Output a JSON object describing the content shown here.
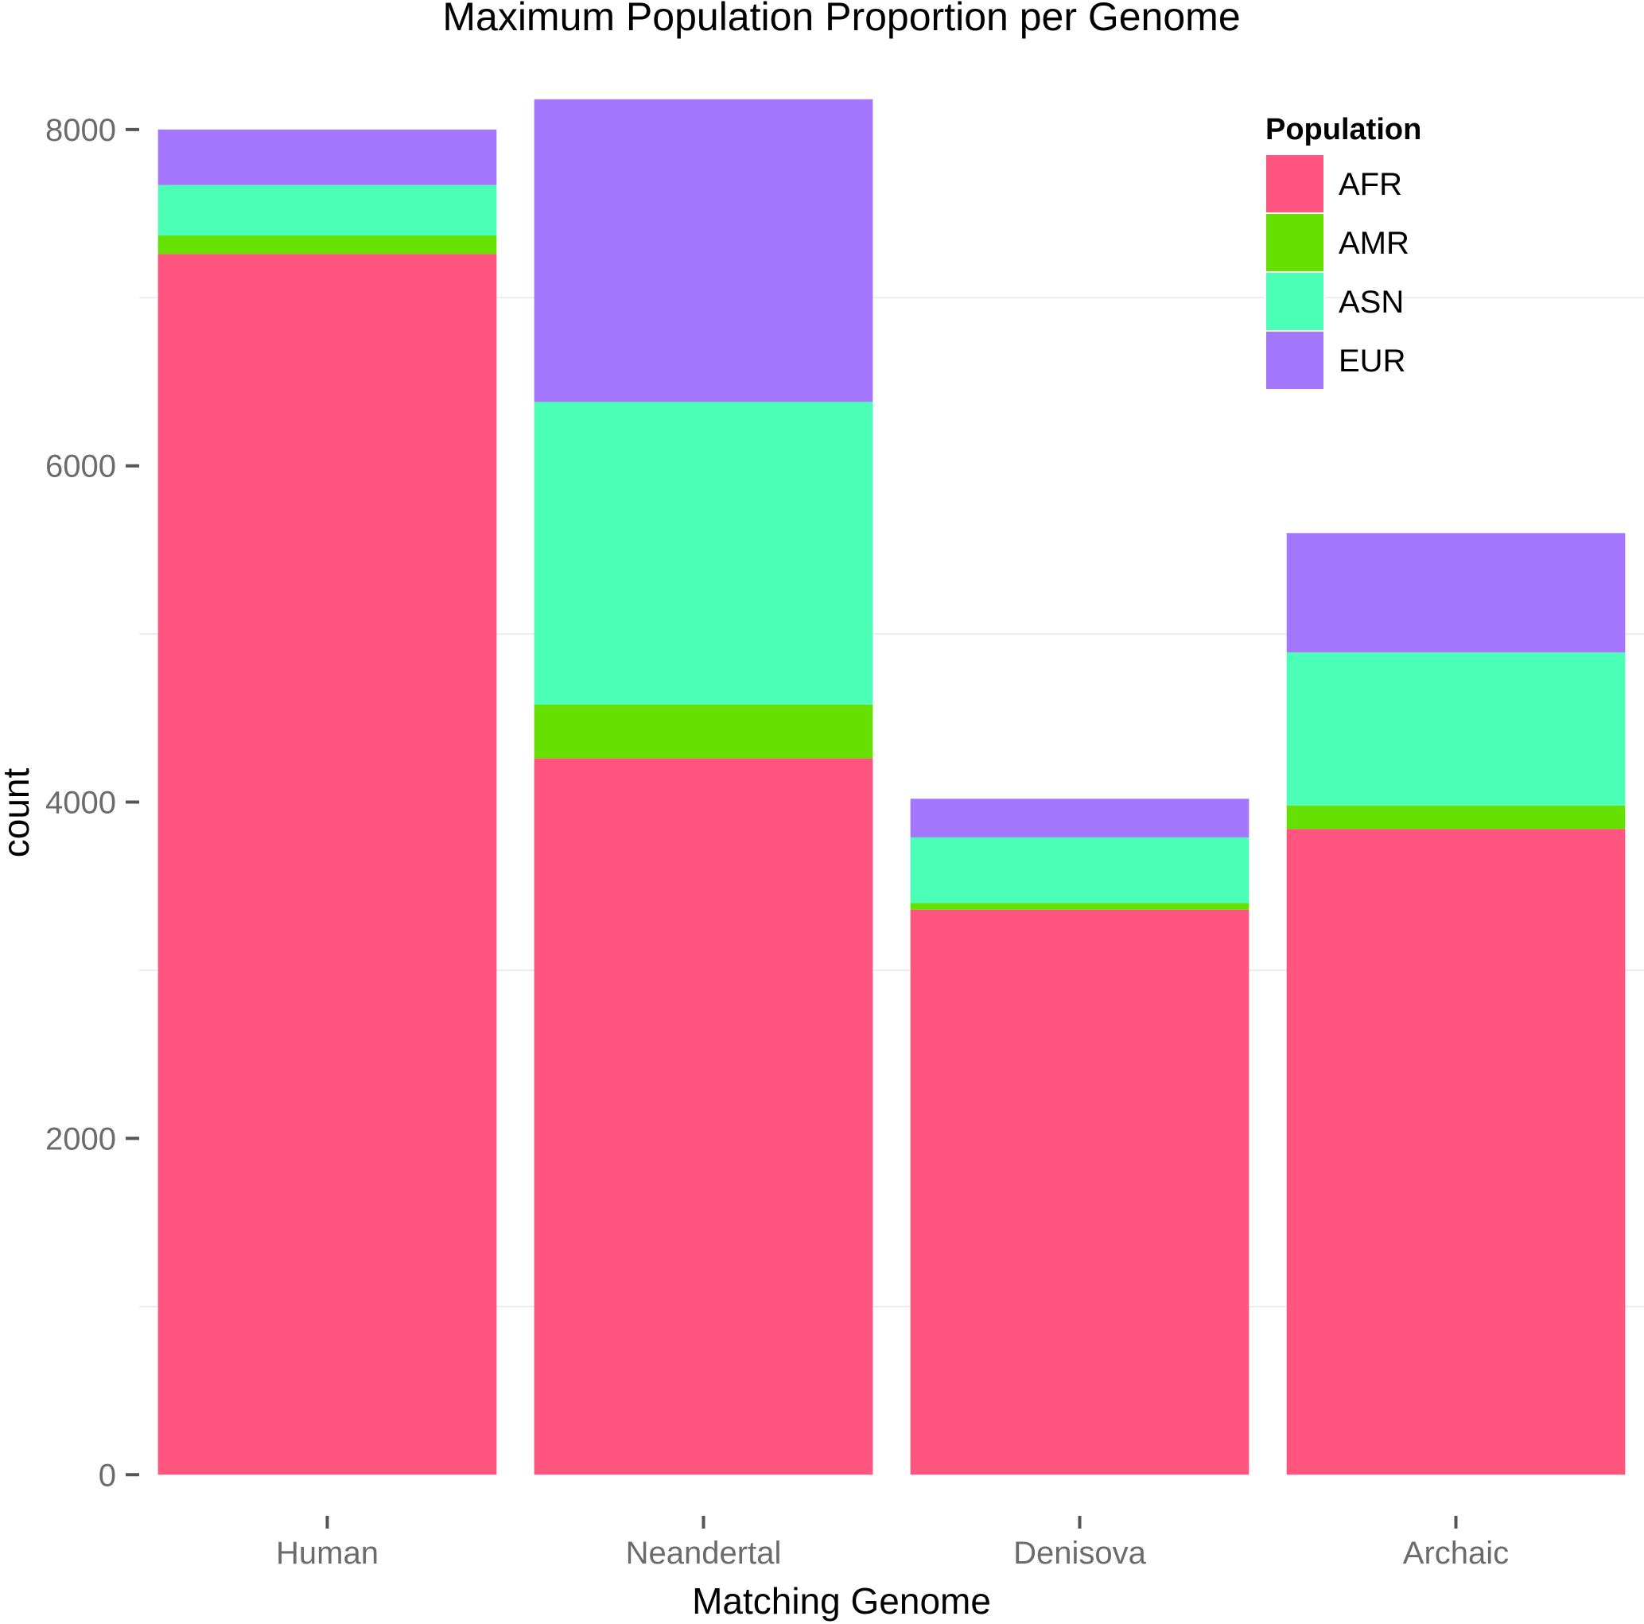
{
  "chart_data": {
    "type": "bar",
    "stacked": true,
    "title": "Maximum Population Proportion per Genome",
    "xlabel": "Matching Genome",
    "ylabel": "count",
    "categories": [
      "Human",
      "Neandertal",
      "Denisova",
      "Archaic"
    ],
    "ylim": [
      -240,
      8250
    ],
    "yticks": [
      0,
      2000,
      4000,
      6000,
      8000
    ],
    "ytick_labels": [
      "0",
      "2000",
      "4000",
      "6000",
      "8000"
    ],
    "minor_gridlines": [
      1000,
      3000,
      5000,
      7000
    ],
    "grid": true,
    "legend": {
      "title": "Population",
      "position": "top-right"
    },
    "series": [
      {
        "name": "AFR",
        "color": "#ff557f",
        "values": [
          7260,
          4260,
          3360,
          3840
        ]
      },
      {
        "name": "AMR",
        "color": "#66e000",
        "values": [
          110,
          320,
          40,
          140
        ]
      },
      {
        "name": "ASN",
        "color": "#4cffb7",
        "values": [
          300,
          1800,
          390,
          910
        ]
      },
      {
        "name": "EUR",
        "color": "#a577ff",
        "values": [
          330,
          1800,
          230,
          710
        ]
      }
    ]
  }
}
